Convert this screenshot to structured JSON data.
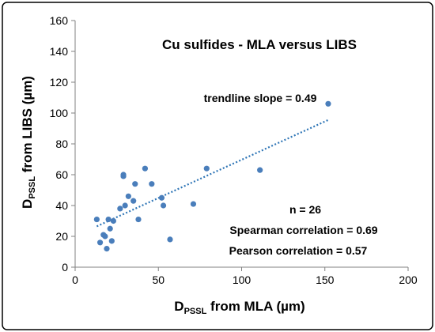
{
  "chart_data": {
    "type": "scatter",
    "title": "Cu sulfides - MLA versus LIBS",
    "xlabel": {
      "main": "D",
      "sub": "PSSL",
      "rest": " from MLA (µm)"
    },
    "ylabel": {
      "main": "D",
      "sub": "PSSL",
      "rest": "  from LIBS (µm)"
    },
    "xlim": [
      0,
      200
    ],
    "ylim": [
      0,
      160
    ],
    "xticks": [
      0,
      50,
      100,
      150,
      200
    ],
    "yticks": [
      0,
      20,
      40,
      60,
      80,
      100,
      120,
      140,
      160
    ],
    "grid": false,
    "legend": "none",
    "marker_color": "#4a7ebb",
    "trendline_color": "#2e75b6",
    "trendline": {
      "slope": 0.49,
      "x": [
        13,
        152
      ],
      "y": [
        26.5,
        95.5
      ]
    },
    "annotations": {
      "slope": "trendline slope = 0.49",
      "n": "n = 26",
      "spearman": "Spearman correlation = 0.69",
      "pearson": "Pearson correlation = 0.57"
    },
    "points": [
      {
        "x": 13,
        "y": 31
      },
      {
        "x": 15,
        "y": 16
      },
      {
        "x": 17,
        "y": 21
      },
      {
        "x": 18,
        "y": 20
      },
      {
        "x": 19,
        "y": 12
      },
      {
        "x": 20,
        "y": 31
      },
      {
        "x": 21,
        "y": 25
      },
      {
        "x": 22,
        "y": 17
      },
      {
        "x": 23,
        "y": 30
      },
      {
        "x": 27,
        "y": 38
      },
      {
        "x": 29,
        "y": 59
      },
      {
        "x": 29,
        "y": 60
      },
      {
        "x": 30,
        "y": 40
      },
      {
        "x": 32,
        "y": 46
      },
      {
        "x": 35,
        "y": 43
      },
      {
        "x": 36,
        "y": 54
      },
      {
        "x": 38,
        "y": 31
      },
      {
        "x": 42,
        "y": 64
      },
      {
        "x": 46,
        "y": 54
      },
      {
        "x": 52,
        "y": 45
      },
      {
        "x": 53,
        "y": 40
      },
      {
        "x": 57,
        "y": 18
      },
      {
        "x": 71,
        "y": 41
      },
      {
        "x": 79,
        "y": 64
      },
      {
        "x": 111,
        "y": 63
      },
      {
        "x": 152,
        "y": 106
      }
    ]
  }
}
